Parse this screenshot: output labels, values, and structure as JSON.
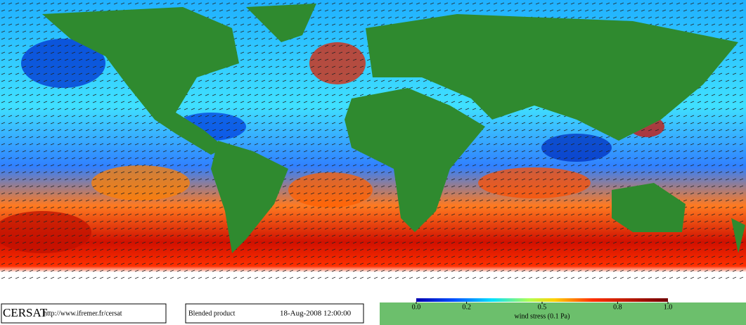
{
  "map": {
    "logo": "CERSAT",
    "url": "http://www.ifremer.fr/cersat",
    "product": "Blended product",
    "date": "18-Aug-2008 12:00:00"
  },
  "colorbar": {
    "lim": [
      0,
      1
    ],
    "ticks": [
      {
        "value": 0,
        "label": "0.0"
      },
      0.2,
      0.5,
      0.8,
      {
        "value": 1,
        "label": "1.0"
      }
    ],
    "label": "wind stress (0.1 Pa)"
  }
}
